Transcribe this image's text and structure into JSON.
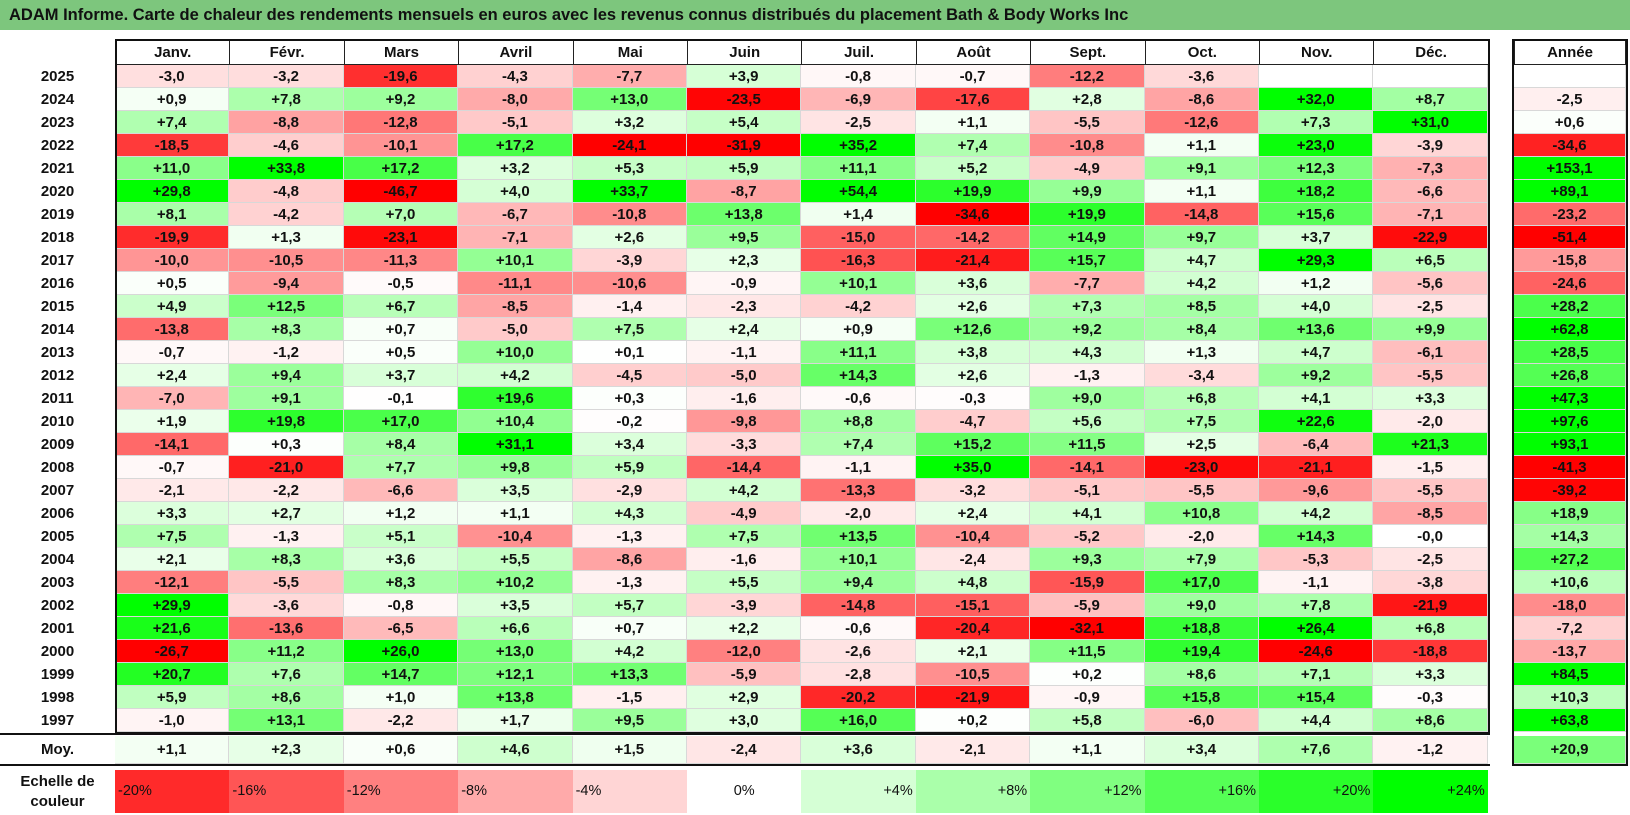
{
  "title": "ADAM Informe. Carte de chaleur des rendements mensuels en euros avec les revenus connus distribués du placement Bath & Body Works Inc",
  "chart_data": {
    "type": "heatmap",
    "columns": [
      "Janv.",
      "Févr.",
      "Mars",
      "Avril",
      "Mai",
      "Juin",
      "Juil.",
      "Août",
      "Sept.",
      "Oct.",
      "Nov.",
      "Déc."
    ],
    "year_header": "Année",
    "rows": [
      {
        "year": "2025",
        "values": [
          "-3,0",
          "-3,2",
          "-19,6",
          "-4,3",
          "-7,7",
          "+3,9",
          "-0,8",
          "-0,7",
          "-12,2",
          "-3,6",
          "",
          ""
        ],
        "total": ""
      },
      {
        "year": "2024",
        "values": [
          "+0,9",
          "+7,8",
          "+9,2",
          "-8,0",
          "+13,0",
          "-23,5",
          "-6,9",
          "-17,6",
          "+2,8",
          "-8,6",
          "+32,0",
          "+8,7"
        ],
        "total": "-2,5"
      },
      {
        "year": "2023",
        "values": [
          "+7,4",
          "-8,8",
          "-12,8",
          "-5,1",
          "+3,2",
          "+5,4",
          "-2,5",
          "+1,1",
          "-5,5",
          "-12,6",
          "+7,3",
          "+31,0"
        ],
        "total": "+0,6"
      },
      {
        "year": "2022",
        "values": [
          "-18,5",
          "-4,6",
          "-10,1",
          "+17,2",
          "-24,1",
          "-31,9",
          "+35,2",
          "+7,4",
          "-10,8",
          "+1,1",
          "+23,0",
          "-3,9"
        ],
        "total": "-34,6"
      },
      {
        "year": "2021",
        "values": [
          "+11,0",
          "+33,8",
          "+17,2",
          "+3,2",
          "+5,3",
          "+5,9",
          "+11,1",
          "+5,2",
          "-4,9",
          "+9,1",
          "+12,3",
          "-7,3"
        ],
        "total": "+153,1"
      },
      {
        "year": "2020",
        "values": [
          "+29,8",
          "-4,8",
          "-46,7",
          "+4,0",
          "+33,7",
          "-8,7",
          "+54,4",
          "+19,9",
          "+9,9",
          "+1,1",
          "+18,2",
          "-6,6"
        ],
        "total": "+89,1"
      },
      {
        "year": "2019",
        "values": [
          "+8,1",
          "-4,2",
          "+7,0",
          "-6,7",
          "-10,8",
          "+13,8",
          "+1,4",
          "-34,6",
          "+19,9",
          "-14,8",
          "+15,6",
          "-7,1"
        ],
        "total": "-23,2"
      },
      {
        "year": "2018",
        "values": [
          "-19,9",
          "+1,3",
          "-23,1",
          "-7,1",
          "+2,6",
          "+9,5",
          "-15,0",
          "-14,2",
          "+14,9",
          "+9,7",
          "+3,7",
          "-22,9"
        ],
        "total": "-51,4"
      },
      {
        "year": "2017",
        "values": [
          "-10,0",
          "-10,5",
          "-11,3",
          "+10,1",
          "-3,9",
          "+2,3",
          "-16,3",
          "-21,4",
          "+15,7",
          "+4,7",
          "+29,3",
          "+6,5"
        ],
        "total": "-15,8"
      },
      {
        "year": "2016",
        "values": [
          "+0,5",
          "-9,4",
          "-0,5",
          "-11,1",
          "-10,6",
          "-0,9",
          "+10,1",
          "+3,6",
          "-7,7",
          "+4,2",
          "+1,2",
          "-5,6"
        ],
        "total": "-24,6"
      },
      {
        "year": "2015",
        "values": [
          "+4,9",
          "+12,5",
          "+6,7",
          "-8,5",
          "-1,4",
          "-2,3",
          "-4,2",
          "+2,6",
          "+7,3",
          "+8,5",
          "+4,0",
          "-2,5"
        ],
        "total": "+28,2"
      },
      {
        "year": "2014",
        "values": [
          "-13,8",
          "+8,3",
          "+0,7",
          "-5,0",
          "+7,5",
          "+2,4",
          "+0,9",
          "+12,6",
          "+9,2",
          "+8,4",
          "+13,6",
          "+9,9"
        ],
        "total": "+62,8"
      },
      {
        "year": "2013",
        "values": [
          "-0,7",
          "-1,2",
          "+0,5",
          "+10,0",
          "+0,1",
          "-1,1",
          "+11,1",
          "+3,8",
          "+4,3",
          "+1,3",
          "+4,7",
          "-6,1"
        ],
        "total": "+28,5"
      },
      {
        "year": "2012",
        "values": [
          "+2,4",
          "+9,4",
          "+3,7",
          "+4,2",
          "-4,5",
          "-5,0",
          "+14,3",
          "+2,6",
          "-1,3",
          "-3,4",
          "+9,2",
          "-5,5"
        ],
        "total": "+26,8"
      },
      {
        "year": "2011",
        "values": [
          "-7,0",
          "+9,1",
          "-0,1",
          "+19,6",
          "+0,3",
          "-1,6",
          "-0,6",
          "-0,3",
          "+9,0",
          "+6,8",
          "+4,1",
          "+3,3"
        ],
        "total": "+47,3"
      },
      {
        "year": "2010",
        "values": [
          "+1,9",
          "+19,8",
          "+17,0",
          "+10,4",
          "-0,2",
          "-9,8",
          "+8,8",
          "-4,7",
          "+5,6",
          "+7,5",
          "+22,6",
          "-2,0"
        ],
        "total": "+97,6"
      },
      {
        "year": "2009",
        "values": [
          "-14,1",
          "+0,3",
          "+8,4",
          "+31,1",
          "+3,4",
          "-3,3",
          "+7,4",
          "+15,2",
          "+11,5",
          "+2,5",
          "-6,4",
          "+21,3"
        ],
        "total": "+93,1"
      },
      {
        "year": "2008",
        "values": [
          "-0,7",
          "-21,0",
          "+7,7",
          "+9,8",
          "+5,9",
          "-14,4",
          "-1,1",
          "+35,0",
          "-14,1",
          "-23,0",
          "-21,1",
          "-1,5"
        ],
        "total": "-41,3"
      },
      {
        "year": "2007",
        "values": [
          "-2,1",
          "-2,2",
          "-6,6",
          "+3,5",
          "-2,9",
          "+4,2",
          "-13,3",
          "-3,2",
          "-5,1",
          "-5,5",
          "-9,6",
          "-5,5"
        ],
        "total": "-39,2"
      },
      {
        "year": "2006",
        "values": [
          "+3,3",
          "+2,7",
          "+1,2",
          "+1,1",
          "+4,3",
          "-4,9",
          "-2,0",
          "+2,4",
          "+4,1",
          "+10,8",
          "+4,2",
          "-8,5"
        ],
        "total": "+18,9"
      },
      {
        "year": "2005",
        "values": [
          "+7,5",
          "-1,3",
          "+5,1",
          "-10,4",
          "-1,3",
          "+7,5",
          "+13,5",
          "-10,4",
          "-5,2",
          "-2,0",
          "+14,3",
          "-0,0"
        ],
        "total": "+14,3"
      },
      {
        "year": "2004",
        "values": [
          "+2,1",
          "+8,3",
          "+3,6",
          "+5,5",
          "-8,6",
          "-1,6",
          "+10,1",
          "-2,4",
          "+9,3",
          "+7,9",
          "-5,3",
          "-2,5"
        ],
        "total": "+27,2"
      },
      {
        "year": "2003",
        "values": [
          "-12,1",
          "-5,5",
          "+8,3",
          "+10,2",
          "-1,3",
          "+5,5",
          "+9,4",
          "+4,8",
          "-15,9",
          "+17,0",
          "-1,1",
          "-3,8"
        ],
        "total": "+10,6"
      },
      {
        "year": "2002",
        "values": [
          "+29,9",
          "-3,6",
          "-0,8",
          "+3,5",
          "+5,7",
          "-3,9",
          "-14,8",
          "-15,1",
          "-5,9",
          "+9,0",
          "+7,8",
          "-21,9"
        ],
        "total": "-18,0"
      },
      {
        "year": "2001",
        "values": [
          "+21,6",
          "-13,6",
          "-6,5",
          "+6,6",
          "+0,7",
          "+2,2",
          "-0,6",
          "-20,4",
          "-32,1",
          "+18,8",
          "+26,4",
          "+6,8"
        ],
        "total": "-7,2"
      },
      {
        "year": "2000",
        "values": [
          "-26,7",
          "+11,2",
          "+26,0",
          "+13,0",
          "+4,2",
          "-12,0",
          "-2,6",
          "+2,1",
          "+11,5",
          "+19,4",
          "-24,6",
          "-18,8"
        ],
        "total": "-13,7"
      },
      {
        "year": "1999",
        "values": [
          "+20,7",
          "+7,6",
          "+14,7",
          "+12,1",
          "+13,3",
          "-5,9",
          "-2,8",
          "-10,5",
          "+0,2",
          "+8,6",
          "+7,1",
          "+3,3"
        ],
        "total": "+84,5"
      },
      {
        "year": "1998",
        "values": [
          "+5,9",
          "+8,6",
          "+1,0",
          "+13,8",
          "-1,5",
          "+2,9",
          "-20,2",
          "-21,9",
          "-0,9",
          "+15,8",
          "+15,4",
          "-0,3"
        ],
        "total": "+10,3"
      },
      {
        "year": "1997",
        "values": [
          "-1,0",
          "+13,1",
          "-2,2",
          "+1,7",
          "+9,5",
          "+3,0",
          "+16,0",
          "+0,2",
          "+5,8",
          "-6,0",
          "+4,4",
          "+8,6"
        ],
        "total": "+63,8"
      }
    ],
    "average": {
      "label": "Moy.",
      "values": [
        "+1,1",
        "+2,3",
        "+0,6",
        "+4,6",
        "+1,5",
        "-2,4",
        "+3,6",
        "-2,1",
        "+1,1",
        "+3,4",
        "+7,6",
        "-1,2"
      ],
      "total": "+20,9"
    },
    "color_scale": {
      "label": "Echelle de couleur",
      "steps": [
        "-20%",
        "-16%",
        "-12%",
        "-8%",
        "-4%",
        "0%",
        "+4%",
        "+8%",
        "+12%",
        "+16%",
        "+20%",
        "+24%"
      ],
      "negative_color": "#ff0000",
      "positive_color": "#00ff00",
      "neutral_color": "#ffffff"
    }
  }
}
